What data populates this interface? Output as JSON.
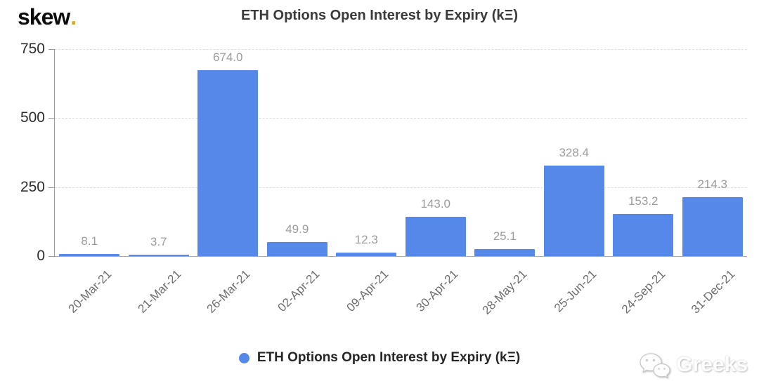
{
  "logo": {
    "text": "skew",
    "dot": ".",
    "dot_color": "#d4a938"
  },
  "title": "ETH Options Open Interest by Expiry (kΞ)",
  "chart_data": {
    "type": "bar",
    "title": "ETH Options Open Interest by Expiry (kΞ)",
    "categories": [
      "20-Mar-21",
      "21-Mar-21",
      "26-Mar-21",
      "02-Apr-21",
      "09-Apr-21",
      "30-Apr-21",
      "28-May-21",
      "25-Jun-21",
      "24-Sep-21",
      "31-Dec-21"
    ],
    "values": [
      8.1,
      3.7,
      674.0,
      49.9,
      12.3,
      143.0,
      25.1,
      328.4,
      153.2,
      214.3
    ],
    "data_labels": [
      "8.1",
      "3.7",
      "674.0",
      "49.9",
      "12.3",
      "143.0",
      "25.1",
      "328.4",
      "153.2",
      "214.3"
    ],
    "xlabel": "",
    "ylabel": "",
    "ylim": [
      0,
      750
    ],
    "yticks": [
      0,
      250,
      500,
      750
    ],
    "grid": "horizontal-dashed",
    "bar_color": "#5588e8",
    "legend_position": "bottom-center"
  },
  "legend": {
    "label": "ETH Options Open Interest by Expiry (kΞ)",
    "marker_color": "#5588e8"
  },
  "watermark": {
    "text": "Greeks",
    "icon": "wechat-icon"
  }
}
